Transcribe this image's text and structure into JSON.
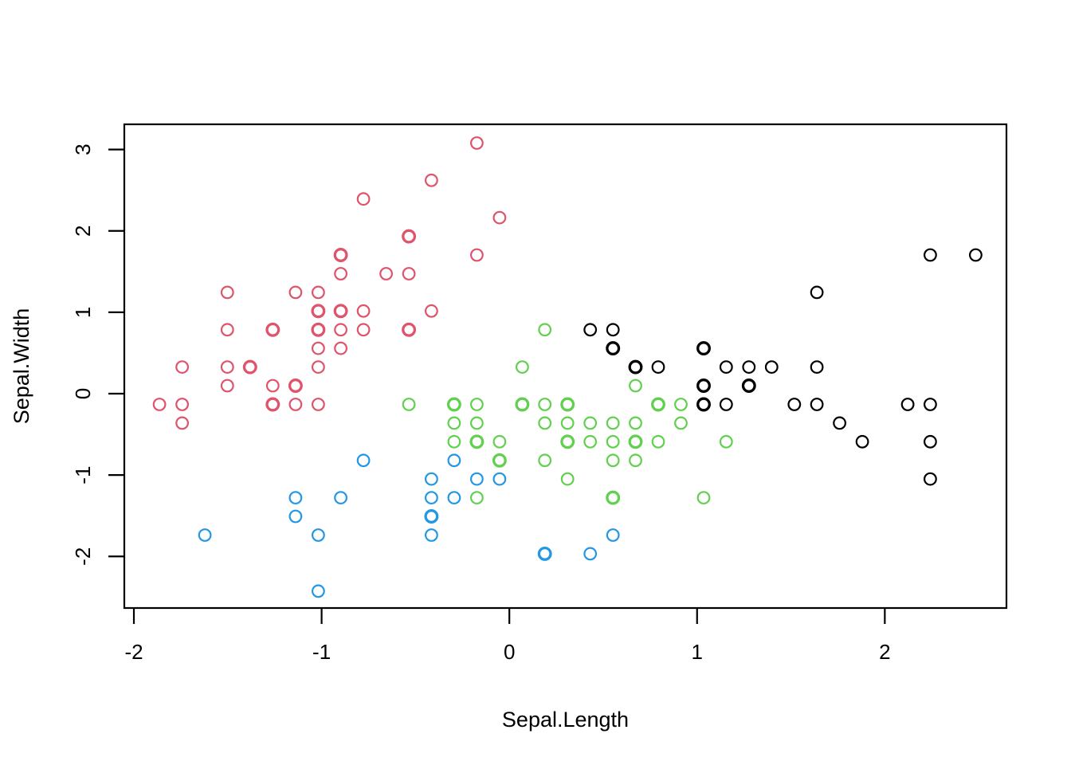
{
  "chart_data": {
    "type": "scatter",
    "title": "",
    "xlabel": "Sepal.Length",
    "ylabel": "Sepal.Width",
    "xlim": [
      -2.051,
      2.648
    ],
    "ylim": [
      -2.634,
      3.31
    ],
    "x_ticks": [
      -2,
      -1,
      0,
      1,
      2
    ],
    "x_tick_labels": [
      "-2",
      "-1",
      "0",
      "1",
      "2"
    ],
    "y_ticks": [
      -2,
      -1,
      0,
      1,
      2,
      3
    ],
    "y_tick_labels": [
      "-2",
      "-1",
      "0",
      "1",
      "2",
      "3"
    ],
    "grid": false,
    "legend": "none",
    "marker": "open-circle",
    "background_color": "#ffffff",
    "axis_color": "#000000",
    "description": "Standardized iris sepal measurements; open circles colored by cluster; third element of a point is overplot count",
    "series": [
      {
        "name": "cluster-red",
        "color": "#DF536B",
        "points": [
          [
            -0.777,
            2.392
          ],
          [
            -0.415,
            2.622
          ],
          [
            -0.173,
            3.08
          ],
          [
            -0.052,
            2.163
          ],
          [
            -0.535,
            1.933,
            2
          ],
          [
            -0.898,
            1.704,
            3
          ],
          [
            -0.173,
            1.704
          ],
          [
            -0.898,
            1.474
          ],
          [
            -0.656,
            1.474
          ],
          [
            -0.535,
            1.474
          ],
          [
            -1.502,
            1.245
          ],
          [
            -1.139,
            1.245
          ],
          [
            -1.018,
            1.245
          ],
          [
            -1.018,
            1.016,
            2
          ],
          [
            -0.898,
            1.016,
            2
          ],
          [
            -0.777,
            1.016
          ],
          [
            -0.415,
            1.016
          ],
          [
            -1.502,
            0.786
          ],
          [
            -1.26,
            0.786,
            2
          ],
          [
            -1.018,
            0.786,
            2
          ],
          [
            -0.898,
            0.786
          ],
          [
            -0.777,
            0.786
          ],
          [
            -0.535,
            0.786,
            2
          ],
          [
            -1.018,
            0.557
          ],
          [
            -0.898,
            0.557
          ],
          [
            -1.743,
            0.327
          ],
          [
            -1.502,
            0.327
          ],
          [
            -1.381,
            0.327,
            2
          ],
          [
            -1.018,
            0.327
          ],
          [
            -1.502,
            0.098
          ],
          [
            -1.26,
            0.098
          ],
          [
            -1.139,
            0.098,
            2
          ],
          [
            -1.864,
            -0.132
          ],
          [
            -1.743,
            -0.132
          ],
          [
            -1.26,
            -0.132,
            2
          ],
          [
            -1.139,
            -0.132
          ],
          [
            -1.018,
            -0.132
          ],
          [
            -1.743,
            -0.361
          ]
        ]
      },
      {
        "name": "cluster-green",
        "color": "#61D04F",
        "points": [
          [
            0.189,
            0.786
          ],
          [
            0.069,
            0.327
          ],
          [
            -0.535,
            -0.132
          ],
          [
            -0.294,
            -0.132,
            2
          ],
          [
            -0.173,
            -0.132
          ],
          [
            0.069,
            -0.132,
            2
          ],
          [
            0.189,
            -0.132
          ],
          [
            0.31,
            -0.132,
            2
          ],
          [
            0.793,
            -0.132,
            3
          ],
          [
            0.914,
            -0.132
          ],
          [
            0.672,
            0.098
          ],
          [
            -0.294,
            -0.361
          ],
          [
            -0.173,
            -0.361
          ],
          [
            0.189,
            -0.361
          ],
          [
            0.31,
            -0.361
          ],
          [
            0.431,
            -0.361
          ],
          [
            0.552,
            -0.361
          ],
          [
            0.672,
            -0.361
          ],
          [
            0.914,
            -0.361
          ],
          [
            -0.294,
            -0.59
          ],
          [
            -0.173,
            -0.59,
            2
          ],
          [
            -0.052,
            -0.59
          ],
          [
            0.31,
            -0.59,
            2
          ],
          [
            0.431,
            -0.59
          ],
          [
            0.552,
            -0.59
          ],
          [
            0.672,
            -0.59,
            2
          ],
          [
            0.793,
            -0.59
          ],
          [
            1.155,
            -0.59
          ],
          [
            -0.052,
            -0.82,
            4
          ],
          [
            0.189,
            -0.82
          ],
          [
            0.552,
            -0.82
          ],
          [
            0.672,
            -0.82
          ],
          [
            0.31,
            -1.049
          ],
          [
            -0.173,
            -1.279
          ],
          [
            0.552,
            -1.279,
            2
          ],
          [
            1.035,
            -1.279
          ]
        ]
      },
      {
        "name": "cluster-blue",
        "color": "#2297E6",
        "points": [
          [
            -0.777,
            -0.82
          ],
          [
            -0.294,
            -0.82
          ],
          [
            -0.415,
            -1.049
          ],
          [
            -0.173,
            -1.049
          ],
          [
            -0.052,
            -1.049
          ],
          [
            -1.139,
            -1.279
          ],
          [
            -0.898,
            -1.279
          ],
          [
            -0.415,
            -1.279
          ],
          [
            -0.294,
            -1.279
          ],
          [
            -1.139,
            -1.508
          ],
          [
            -0.415,
            -1.508,
            2
          ],
          [
            -1.622,
            -1.738
          ],
          [
            -1.018,
            -1.738
          ],
          [
            -0.415,
            -1.738
          ],
          [
            0.552,
            -1.738
          ],
          [
            0.189,
            -1.967,
            2
          ],
          [
            0.431,
            -1.967
          ],
          [
            -1.018,
            -2.426
          ]
        ]
      },
      {
        "name": "cluster-black",
        "color": "#000000",
        "points": [
          [
            0.431,
            0.786
          ],
          [
            0.552,
            0.786
          ],
          [
            0.552,
            0.557,
            2
          ],
          [
            1.035,
            0.557,
            2
          ],
          [
            2.242,
            1.704
          ],
          [
            2.484,
            1.704
          ],
          [
            1.638,
            1.245
          ],
          [
            0.672,
            0.327,
            2
          ],
          [
            0.793,
            0.327
          ],
          [
            1.155,
            0.327
          ],
          [
            1.276,
            0.327
          ],
          [
            1.397,
            0.327
          ],
          [
            1.638,
            0.327
          ],
          [
            1.035,
            0.098,
            3
          ],
          [
            1.276,
            0.098,
            3
          ],
          [
            1.035,
            -0.132,
            2
          ],
          [
            1.155,
            -0.132
          ],
          [
            1.518,
            -0.132
          ],
          [
            1.638,
            -0.132
          ],
          [
            2.122,
            -0.132
          ],
          [
            2.242,
            -0.132
          ],
          [
            1.759,
            -0.361
          ],
          [
            1.88,
            -0.59
          ],
          [
            2.242,
            -0.59
          ],
          [
            2.242,
            -1.049
          ]
        ]
      }
    ]
  }
}
